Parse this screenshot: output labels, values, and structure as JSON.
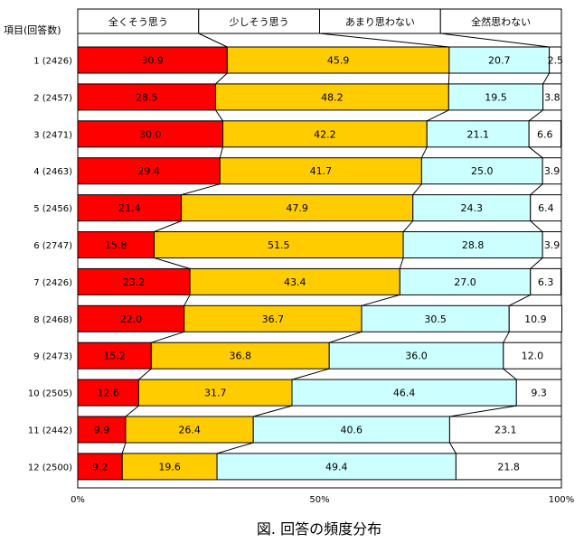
{
  "chart_data": {
    "type": "bar",
    "stacked": true,
    "orientation": "horizontal",
    "title": "図. 回答の頻度分布",
    "ylabel": "項目(回答数)",
    "xlim": [
      0,
      100
    ],
    "x_ticks": [
      "0%",
      "50%",
      "100%"
    ],
    "legend_position": "top",
    "categories": [
      "1 (2426)",
      "2 (2457)",
      "3 (2471)",
      "4 (2463)",
      "5 (2456)",
      "6 (2747)",
      "7 (2426)",
      "8 (2468)",
      "9 (2473)",
      "10 (2505)",
      "11 (2442)",
      "12 (2500)"
    ],
    "series": [
      {
        "name": "全くそう思う",
        "color": "#ff0000",
        "values": [
          30.9,
          28.5,
          30.0,
          29.4,
          21.4,
          15.8,
          23.2,
          22.0,
          15.2,
          12.6,
          9.9,
          9.2
        ]
      },
      {
        "name": "少しそう思う",
        "color": "#ffcc00",
        "values": [
          45.9,
          48.2,
          42.2,
          41.7,
          47.9,
          51.5,
          43.4,
          36.7,
          36.8,
          31.7,
          26.4,
          19.6
        ]
      },
      {
        "name": "あまり思わない",
        "color": "#ccffff",
        "values": [
          20.7,
          19.5,
          21.1,
          25.0,
          24.3,
          28.8,
          27.0,
          30.5,
          36.0,
          46.4,
          40.6,
          49.4
        ]
      },
      {
        "name": "全然思わない",
        "color": "#ffffff",
        "values": [
          2.5,
          3.8,
          6.6,
          3.9,
          6.4,
          3.9,
          6.3,
          10.9,
          12.0,
          9.3,
          23.1,
          21.8
        ]
      }
    ]
  }
}
